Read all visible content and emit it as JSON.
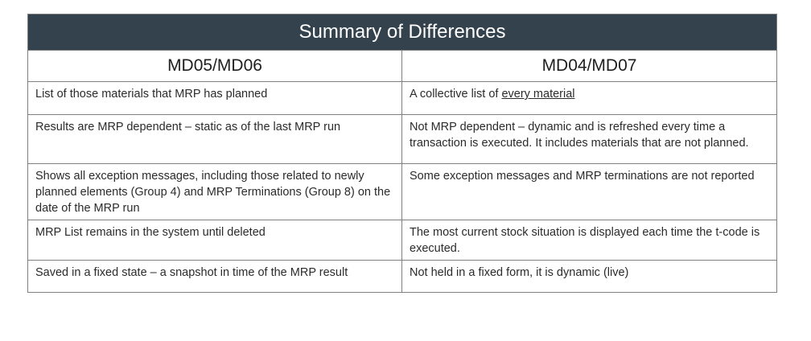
{
  "table": {
    "title": "Summary of Differences",
    "columns": [
      "MD05/MD06",
      "MD04/MD07"
    ],
    "rows": [
      {
        "left": "List of those materials that MRP has planned",
        "right_prefix": "A collective list of ",
        "right_underlined": "every material"
      },
      {
        "left": "Results are MRP dependent – static as of the last MRP run",
        "right": "Not MRP dependent – dynamic and is refreshed every time a transaction is executed. It includes materials that are not planned."
      },
      {
        "left": "Shows all exception messages, including those related to newly planned elements (Group 4) and MRP Terminations (Group 8) on the date of the MRP run",
        "right": "Some exception messages and MRP terminations are not reported"
      },
      {
        "left": "MRP List remains in the system until deleted",
        "right": "The most current stock situation is displayed each time the t-code is executed."
      },
      {
        "left": "Saved in a fixed state – a snapshot in time of the MRP result",
        "right": "Not held in a fixed form, it is dynamic (live)"
      }
    ]
  },
  "colors": {
    "header_background": "#34424e",
    "header_text": "#ffffff",
    "border": "#7f7f7f",
    "body_text": "#2b2b2b"
  }
}
